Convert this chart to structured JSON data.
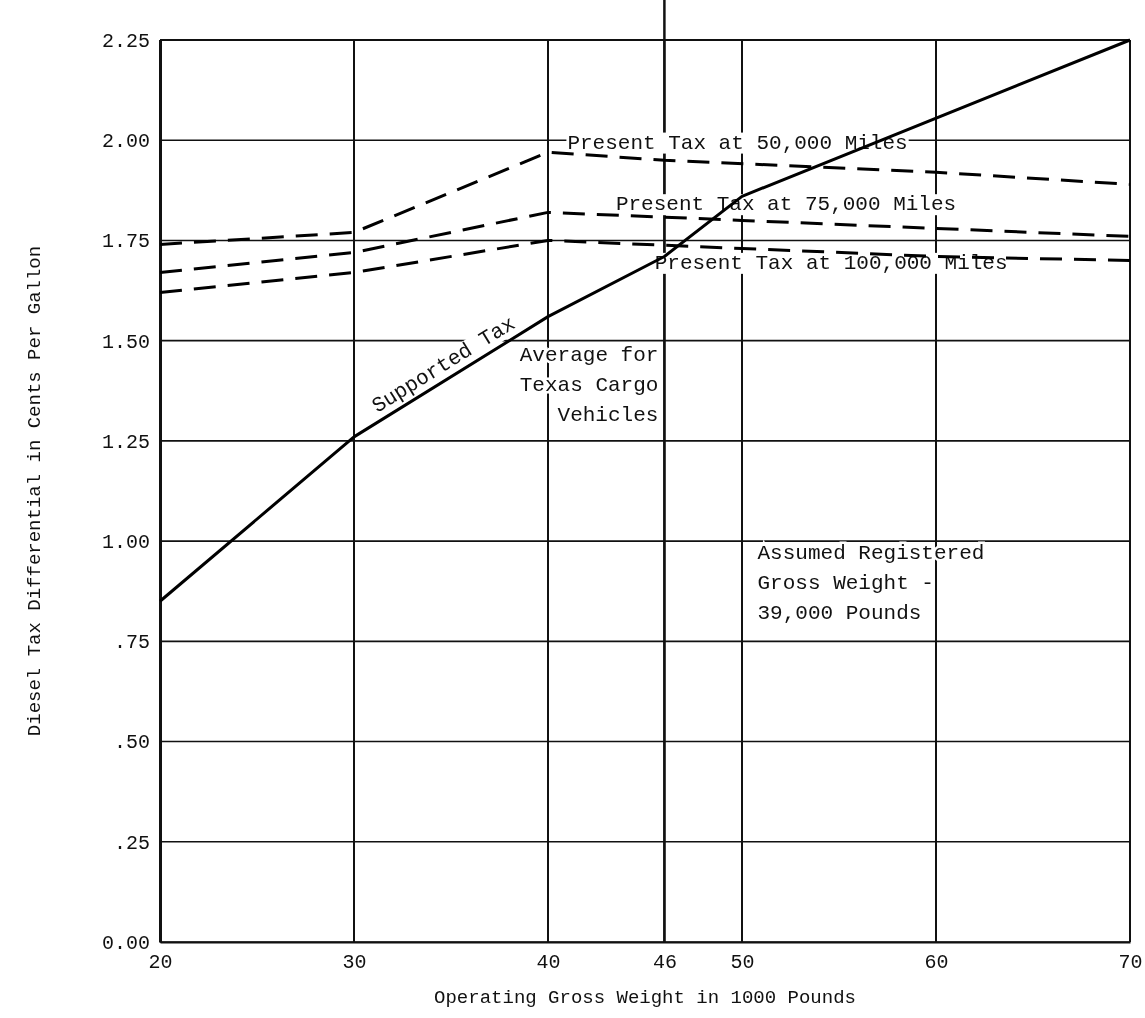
{
  "chart_data": {
    "type": "line",
    "xlabel": "Operating Gross Weight in 1000 Pounds",
    "ylabel": "Diesel Tax Differential in Cents Per Gallon",
    "xlim": [
      20,
      70
    ],
    "xticks": [
      20,
      30,
      40,
      46,
      50,
      60,
      70
    ],
    "ylim": [
      0,
      2.25
    ],
    "yticks": [
      {
        "value": 0,
        "label": "0.00"
      },
      {
        "value": 0.25,
        "label": ".25"
      },
      {
        "value": 0.5,
        "label": ".50"
      },
      {
        "value": 0.75,
        "label": ".75"
      },
      {
        "value": 1,
        "label": "1.00"
      },
      1.25,
      {
        "value": 1.5,
        "label": "1.50"
      },
      1.75,
      {
        "value": 2,
        "label": "2.00"
      },
      2.25
    ],
    "grid": true,
    "marker": "none",
    "series": [
      {
        "name": "Supported Tax",
        "color": "#000000",
        "line_style": "solid",
        "x": [
          20,
          30,
          40,
          46,
          50,
          70
        ],
        "values": [
          0.85,
          1.26,
          1.56,
          1.71,
          1.86,
          2.25
        ]
      },
      {
        "name": "Present Tax at 50,000 Miles",
        "color": "#000000",
        "line_style": "dashed",
        "x": [
          20,
          30,
          40,
          46,
          60,
          70
        ],
        "values": [
          1.74,
          1.77,
          1.97,
          1.95,
          1.92,
          1.89
        ]
      },
      {
        "name": "Present Tax at 75,000 Miles",
        "color": "#000000",
        "line_style": "dashed",
        "x": [
          20,
          30,
          40,
          50,
          60,
          70
        ],
        "values": [
          1.67,
          1.72,
          1.82,
          1.8,
          1.78,
          1.76
        ]
      },
      {
        "name": "Present Tax at 100,000 Miles",
        "color": "#000000",
        "line_style": "dashed",
        "x": [
          20,
          30,
          40,
          50,
          60,
          70
        ],
        "values": [
          1.62,
          1.67,
          1.75,
          1.73,
          1.71,
          1.7
        ]
      }
    ],
    "ref_lines": [
      {
        "axis": "x",
        "value": 46,
        "label": "Average for Texas Cargo Vehicles"
      }
    ],
    "annotations": [
      "Assumed Registered Gross Weight - 39,000 Pounds"
    ]
  }
}
